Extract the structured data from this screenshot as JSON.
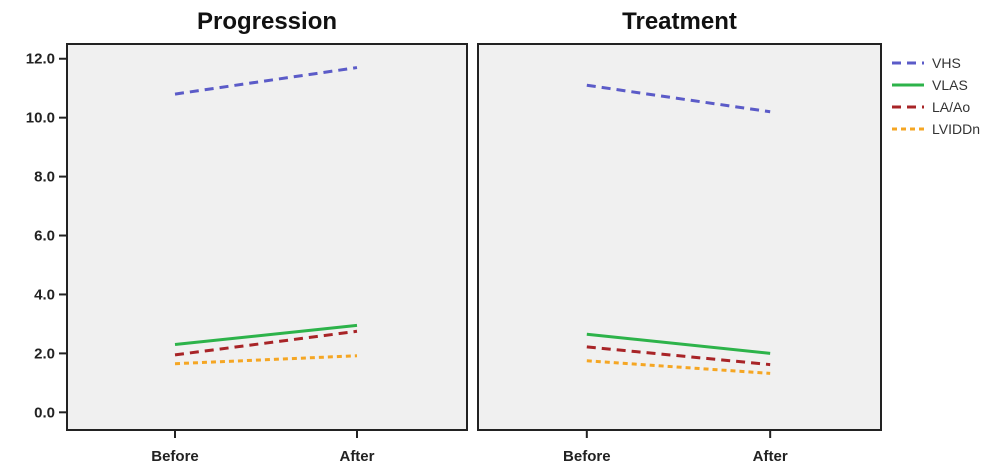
{
  "chart_data": {
    "type": "line",
    "panels": [
      {
        "title": "Progression",
        "categories": [
          "Before",
          "After"
        ],
        "series": [
          {
            "name": "VHS",
            "values": [
              10.8,
              11.7
            ]
          },
          {
            "name": "VLAS",
            "values": [
              2.3,
              2.95
            ]
          },
          {
            "name": "LA/Ao",
            "values": [
              1.95,
              2.75
            ]
          },
          {
            "name": "LVIDDn",
            "values": [
              1.65,
              1.92
            ]
          }
        ]
      },
      {
        "title": "Treatment",
        "categories": [
          "Before",
          "After"
        ],
        "series": [
          {
            "name": "VHS",
            "values": [
              11.1,
              10.2
            ]
          },
          {
            "name": "VLAS",
            "values": [
              2.65,
              2.0
            ]
          },
          {
            "name": "LA/Ao",
            "values": [
              2.22,
              1.62
            ]
          },
          {
            "name": "LVIDDn",
            "values": [
              1.75,
              1.32
            ]
          }
        ]
      }
    ],
    "yticks": [
      "0.0",
      "2.0",
      "4.0",
      "6.0",
      "8.0",
      "10.0",
      "12.0"
    ],
    "ylim": [
      -0.6,
      12.5
    ],
    "legend": {
      "placement": "right",
      "entries": [
        "VHS",
        "VLAS",
        "LA/Ao",
        "LVIDDn"
      ]
    },
    "series_styles": {
      "VHS": {
        "color": "#5B5BC8",
        "dash": "dashed"
      },
      "VLAS": {
        "color": "#2DB34A",
        "dash": "solid"
      },
      "LA/Ao": {
        "color": "#A82427",
        "dash": "dashed"
      },
      "LVIDDn": {
        "color": "#F5A623",
        "dash": "dotted"
      }
    },
    "panel_background": "#F0F0F0",
    "grid": false
  }
}
